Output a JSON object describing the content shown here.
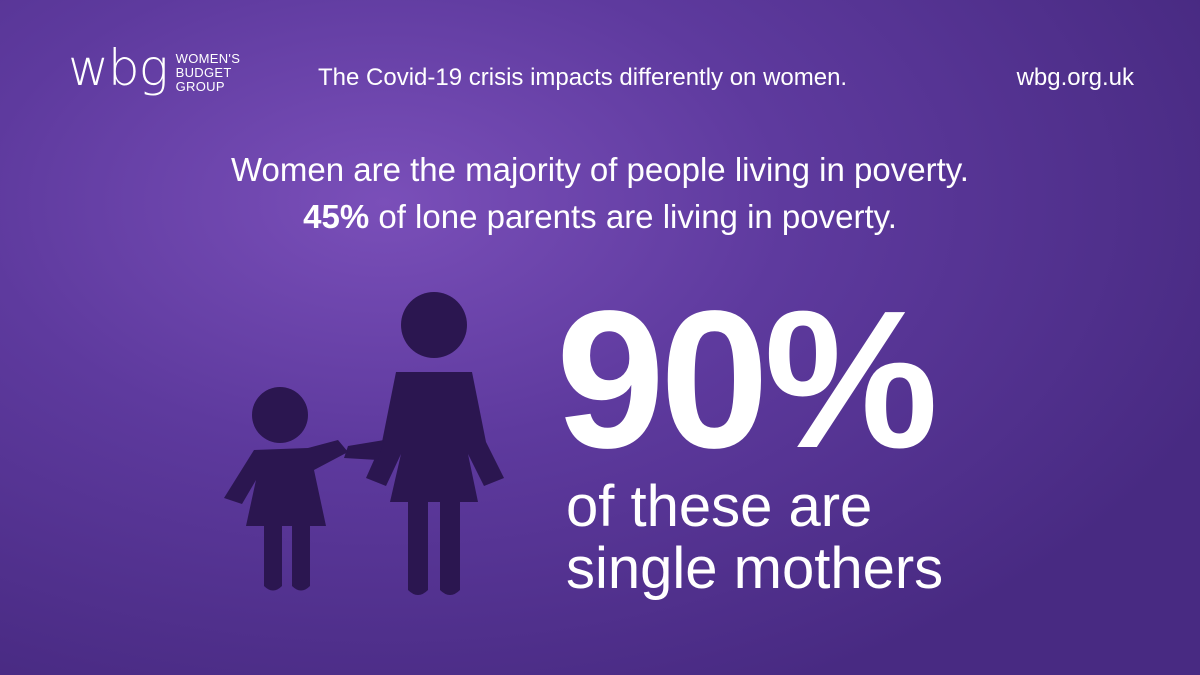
{
  "logo": {
    "mark": "wbg",
    "line1": "WOMEN'S",
    "line2": "BUDGET",
    "line3": "GROUP"
  },
  "header": {
    "tagline": "The Covid-19 crisis impacts differently on women.",
    "website": "wbg.org.uk"
  },
  "headline": {
    "line1": "Women are the majority of people living in poverty.",
    "line2_bold": "45%",
    "line2_rest": " of lone parents are living in poverty."
  },
  "stat": {
    "value": "90%",
    "caption_line1": "of these are",
    "caption_line2": "single mothers"
  },
  "illustration": {
    "icon": "mother-and-child-icon",
    "color": "#2b1650"
  },
  "colors": {
    "background": "#5e3a9e",
    "text": "#ffffff"
  }
}
